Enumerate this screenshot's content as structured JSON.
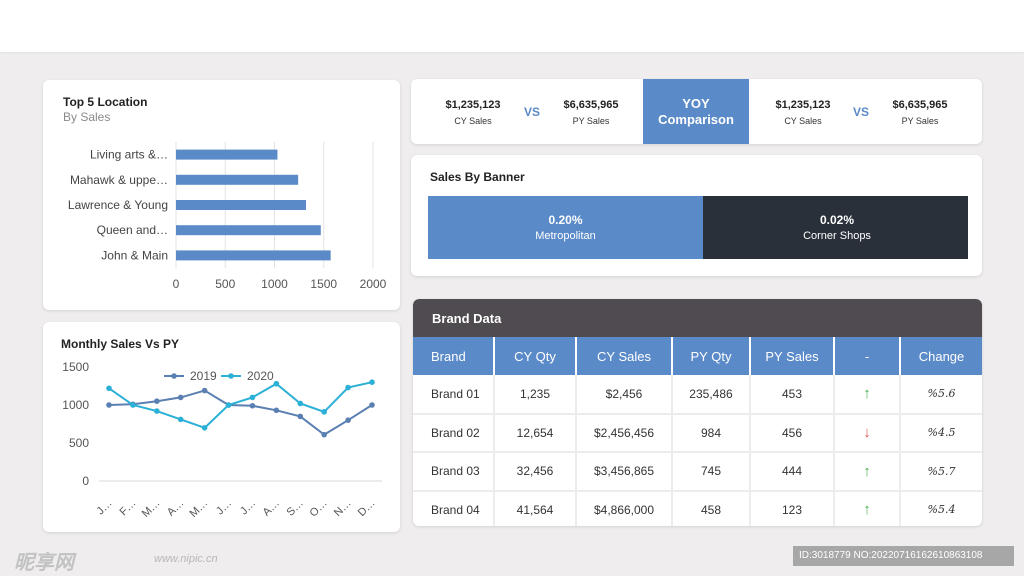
{
  "top5": {
    "title": "Top 5 Location",
    "subtitle": "By Sales",
    "chart_data": {
      "type": "bar",
      "orientation": "horizontal",
      "categories": [
        "Living arts &…",
        "Mahawk & uppe…",
        "Lawrence & Young",
        "Queen and…",
        "John & Main"
      ],
      "values": [
        1030,
        1240,
        1320,
        1470,
        1570
      ],
      "xlim": [
        0,
        2000
      ],
      "xticks": [
        "0",
        "500",
        "1000",
        "1500",
        "2000"
      ],
      "color": "#5b8ac8"
    }
  },
  "monthly": {
    "title": "Monthly Sales Vs PY",
    "chart_data": {
      "type": "line",
      "categories": [
        "J…",
        "F…",
        "M…",
        "A…",
        "M…",
        "J…",
        "J…",
        "A…",
        "S…",
        "O…",
        "N…",
        "D…"
      ],
      "series": [
        {
          "name": "2019",
          "color": "#5a7fb2",
          "values": [
            1000,
            1010,
            1050,
            1100,
            1190,
            1000,
            990,
            930,
            850,
            610,
            800,
            1000
          ]
        },
        {
          "name": "2020",
          "color": "#2bb0d6",
          "values": [
            1220,
            1000,
            920,
            810,
            700,
            1000,
            1100,
            1280,
            1020,
            910,
            1230,
            1300
          ]
        }
      ],
      "ylim": [
        0,
        1500
      ],
      "yticks": [
        "1500",
        "1000",
        "500",
        "0"
      ]
    }
  },
  "comparison": {
    "left": {
      "cy_value": "$1,235,123",
      "cy_label": "CY Sales",
      "vs": "VS",
      "py_value": "$6,635,965",
      "py_label": "PY Sales"
    },
    "center": {
      "line1": "YOY",
      "line2": "Comparison"
    },
    "right": {
      "cy_value": "$1,235,123",
      "cy_label": "CY Sales",
      "vs": "VS",
      "py_value": "$6,635,965",
      "py_label": "PY Sales"
    }
  },
  "banner": {
    "title": "Sales By Banner",
    "segments": [
      {
        "pct": "0.20%",
        "name": "Metropolitan",
        "color": "#5b8ac8"
      },
      {
        "pct": "0.02%",
        "name": "Corner Shops",
        "color": "#293039"
      }
    ]
  },
  "brand": {
    "title": "Brand Data",
    "headers": [
      "Brand",
      "CY Qty",
      "CY Sales",
      "PY Qty",
      "PY Sales",
      "-",
      "Change"
    ],
    "rows": [
      {
        "brand": "Brand 01",
        "cy_qty": "1,235",
        "cy_sales": "$2,456",
        "py_qty": "235,486",
        "py_sales": "453",
        "trend": "↑",
        "change": "%5.6"
      },
      {
        "brand": "Brand 02",
        "cy_qty": "12,654",
        "cy_sales": "$2,456,456",
        "py_qty": "984",
        "py_sales": "456",
        "trend": "↓",
        "change": "%4.5"
      },
      {
        "brand": "Brand 03",
        "cy_qty": "32,456",
        "cy_sales": "$3,456,865",
        "py_qty": "745",
        "py_sales": "444",
        "trend": "↑",
        "change": "%5.7"
      },
      {
        "brand": "Brand 04",
        "cy_qty": "41,564",
        "cy_sales": "$4,866,000",
        "py_qty": "458",
        "py_sales": "123",
        "trend": "↑",
        "change": "%5.4"
      }
    ]
  },
  "watermark": {
    "logo": "昵享网",
    "url": "www.nipic.cn",
    "id": "ID:3018779 NO:20220716162610863108"
  }
}
